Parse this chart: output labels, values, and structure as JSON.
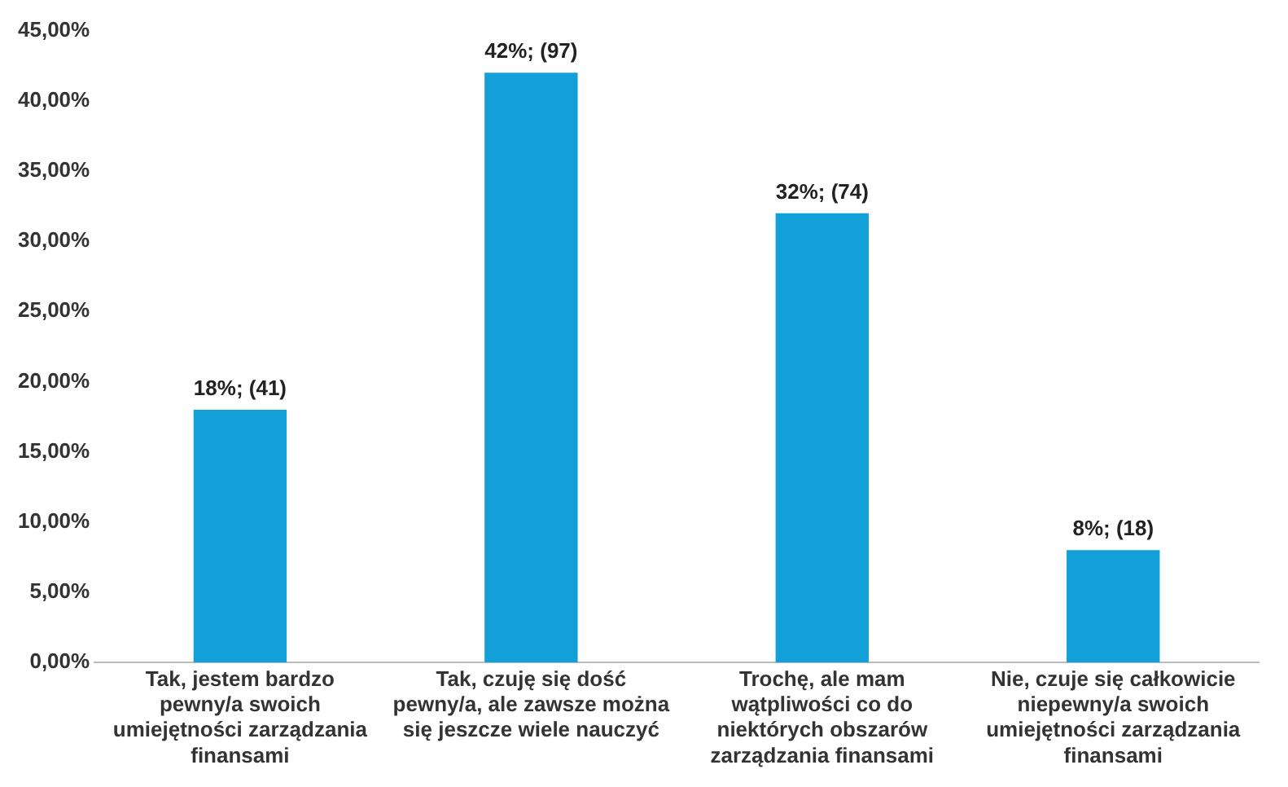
{
  "chart_data": {
    "type": "bar",
    "categories": [
      "Tak, jestem bardzo pewny/a swoich umiejętności zarządzania finansami",
      "Tak, czuję się dość pewny/a, ale zawsze można się jeszcze wiele nauczyć",
      "Trochę, ale mam wątpliwości co do niektórych obszarów zarządzania finansami",
      "Nie, czuje się całkowicie niepewny/a swoich umiejętności zarządzania finansami"
    ],
    "values": [
      18,
      42,
      32,
      8
    ],
    "value_labels": [
      "18%; (41)",
      "42%; (97)",
      "32%; (74)",
      "8%; (18)"
    ],
    "color": "#139fd8",
    "ylim": [
      0,
      45
    ],
    "yticks": [
      {
        "value": 0,
        "label": "0,00%"
      },
      {
        "value": 5,
        "label": "5,00%"
      },
      {
        "value": 10,
        "label": "10,00%"
      },
      {
        "value": 15,
        "label": "15,00%"
      },
      {
        "value": 20,
        "label": "20,00%"
      },
      {
        "value": 25,
        "label": "25,00%"
      },
      {
        "value": 30,
        "label": "30,00%"
      },
      {
        "value": 35,
        "label": "35,00%"
      },
      {
        "value": 40,
        "label": "40,00%"
      },
      {
        "value": 45,
        "label": "45,00%"
      }
    ],
    "grid": false,
    "legend": false
  }
}
